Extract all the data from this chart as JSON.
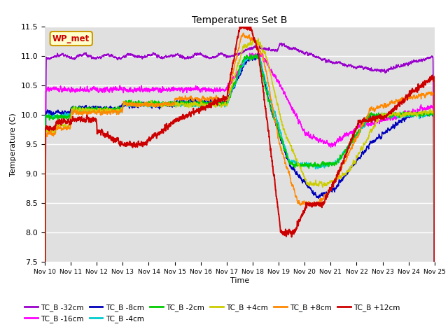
{
  "title": "Temperatures Set B",
  "xlabel": "Time",
  "ylabel": "Temperature (C)",
  "ylim": [
    7.5,
    11.5
  ],
  "xlim": [
    0,
    360
  ],
  "x_tick_labels": [
    "Nov 10",
    "Nov 11",
    "Nov 12",
    "Nov 13",
    "Nov 14",
    "Nov 15",
    "Nov 16",
    "Nov 17",
    "Nov 18",
    "Nov 19",
    "Nov 20",
    "Nov 21",
    "Nov 22",
    "Nov 23",
    "Nov 24",
    "Nov 25"
  ],
  "x_tick_positions": [
    0,
    24,
    48,
    72,
    96,
    120,
    144,
    168,
    192,
    216,
    240,
    264,
    288,
    312,
    336,
    360
  ],
  "yticks": [
    7.5,
    8.0,
    8.5,
    9.0,
    9.5,
    10.0,
    10.5,
    11.0,
    11.5
  ],
  "series": {
    "TC_B -32cm": {
      "color": "#9900cc"
    },
    "TC_B -16cm": {
      "color": "#ff00ff"
    },
    "TC_B -8cm": {
      "color": "#0000bb"
    },
    "TC_B -4cm": {
      "color": "#00cccc"
    },
    "TC_B -2cm": {
      "color": "#00cc00"
    },
    "TC_B +4cm": {
      "color": "#cccc00"
    },
    "TC_B +8cm": {
      "color": "#ff8800"
    },
    "TC_B +12cm": {
      "color": "#cc0000"
    }
  },
  "annotation_text": "WP_met",
  "annotation_color": "#cc0000",
  "annotation_bg": "#ffffcc",
  "annotation_edge": "#cc9900",
  "bg_color": "#e0e0e0",
  "grid_color": "#ffffff"
}
